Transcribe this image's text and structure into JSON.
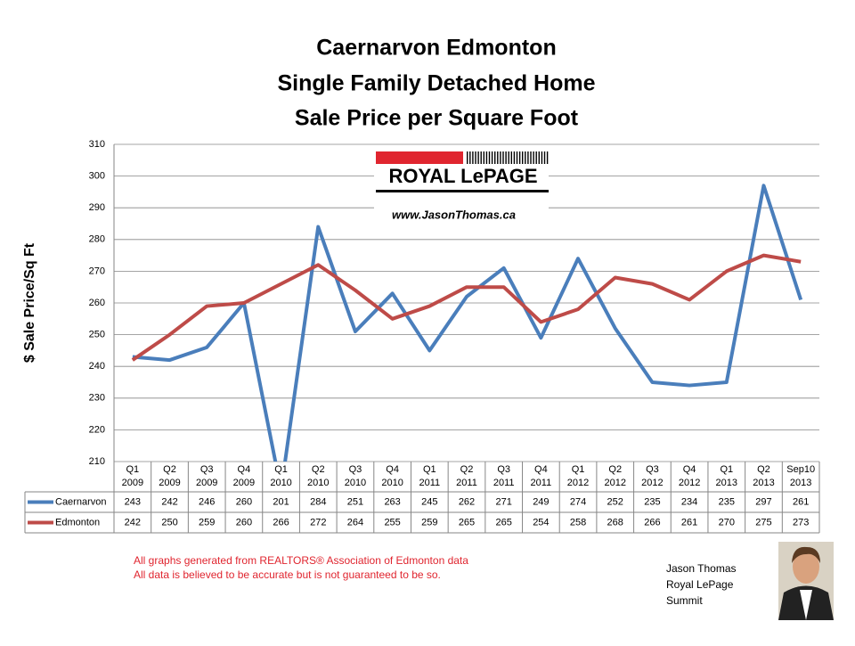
{
  "chart_data": {
    "type": "line",
    "title_lines": [
      "Caernarvon Edmonton",
      "Single Family Detached Home",
      "Sale Price per Square Foot"
    ],
    "y_label": "$ Sale Price/Sq Ft",
    "categories": [
      [
        "Q1",
        "2009"
      ],
      [
        "Q2",
        "2009"
      ],
      [
        "Q3",
        "2009"
      ],
      [
        "Q4",
        "2009"
      ],
      [
        "Q1",
        "2010"
      ],
      [
        "Q2",
        "2010"
      ],
      [
        "Q3",
        "2010"
      ],
      [
        "Q4",
        "2010"
      ],
      [
        "Q1",
        "2011"
      ],
      [
        "Q2",
        "2011"
      ],
      [
        "Q3",
        "2011"
      ],
      [
        "Q4",
        "2011"
      ],
      [
        "Q1",
        "2012"
      ],
      [
        "Q2",
        "2012"
      ],
      [
        "Q3",
        "2012"
      ],
      [
        "Q4",
        "2012"
      ],
      [
        "Q1",
        "2013"
      ],
      [
        "Q2",
        "2013"
      ],
      [
        "Sep10",
        "2013"
      ]
    ],
    "series": [
      {
        "name": "Caernarvon",
        "color": "#4a7ebb",
        "values": [
          243,
          242,
          246,
          260,
          201,
          284,
          251,
          263,
          245,
          262,
          271,
          249,
          274,
          252,
          235,
          234,
          235,
          297,
          261
        ]
      },
      {
        "name": "Edmonton",
        "color": "#be4b48",
        "values": [
          242,
          250,
          259,
          260,
          266,
          272,
          264,
          255,
          259,
          265,
          265,
          254,
          258,
          268,
          266,
          261,
          270,
          275,
          273
        ]
      }
    ],
    "ylim": [
      210,
      310
    ],
    "yticks": [
      210,
      220,
      230,
      240,
      250,
      260,
      270,
      280,
      290,
      300,
      310
    ],
    "grid": true
  },
  "logo": {
    "name": "ROYAL LePAGE",
    "url": "www.JasonThomas.ca"
  },
  "footer_notes": [
    "All graphs generated from REALTORS® Association of Edmonton data",
    "All data is believed to be accurate but is not guaranteed to be so."
  ],
  "author": [
    "Jason Thomas",
    "Royal LePage",
    "Summit"
  ]
}
